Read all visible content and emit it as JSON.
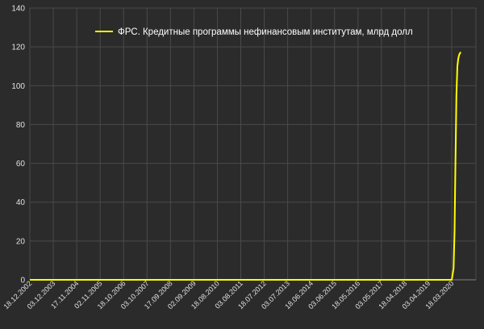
{
  "chart_data": {
    "type": "line",
    "title": "",
    "xlabel": "",
    "ylabel": "",
    "ylim": [
      0,
      140
    ],
    "yticks": [
      0,
      20,
      40,
      60,
      80,
      100,
      120,
      140
    ],
    "x_tick_labels": [
      "18.12.2002",
      "03.12.2003",
      "17.11.2004",
      "02.11.2005",
      "18.10.2006",
      "03.10.2007",
      "17.09.2008",
      "02.09.2009",
      "18.08.2010",
      "03.08.2011",
      "18.07.2012",
      "03.07.2013",
      "18.06.2014",
      "03.06.2015",
      "18.05.2016",
      "03.05.2017",
      "18.04.2018",
      "03.04.2019",
      "18.03.2020"
    ],
    "grid": true,
    "legend_position": "top",
    "series": [
      {
        "name": "ФРС. Кредитные программы нефинансовым институтам, млрд долл",
        "color": "#ffff00",
        "x": [
          "18.12.2002",
          "18.03.2020",
          "01.04.2020",
          "15.04.2020",
          "29.04.2020",
          "13.05.2020",
          "27.05.2020",
          "10.06.2020",
          "24.06.2020",
          "08.07.2020",
          "22.07.2020",
          "05.08.2020"
        ],
        "values": [
          0,
          0,
          3,
          6,
          25,
          60,
          95,
          110,
          114,
          116,
          117,
          117
        ]
      }
    ]
  }
}
